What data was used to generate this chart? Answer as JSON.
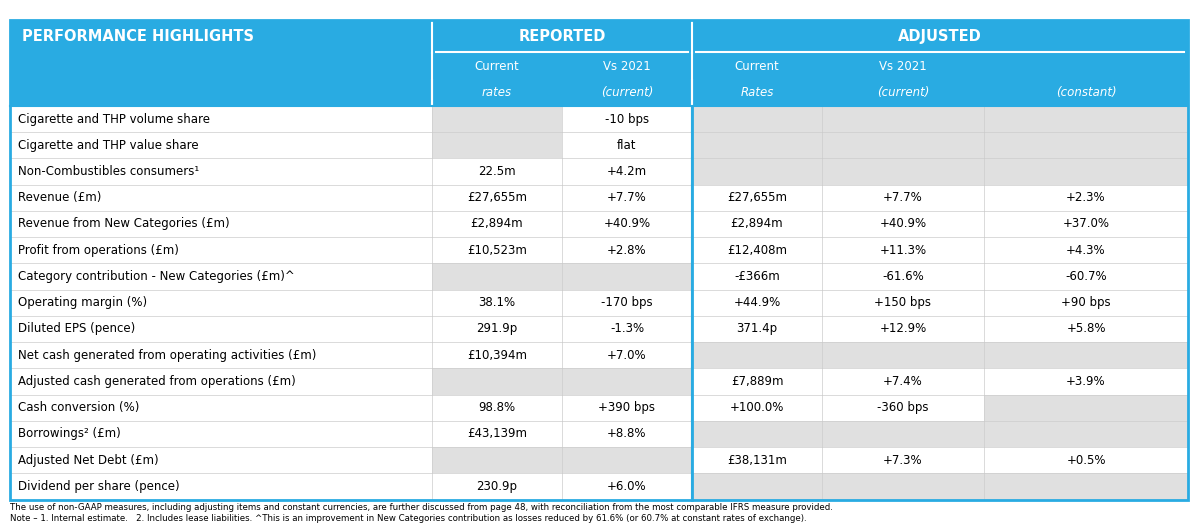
{
  "title": "PERFORMANCE HIGHLIGHTS",
  "header_bg": "#29ABE2",
  "border_color": "#29ABE2",
  "footnote_text": "The use of non-GAAP measures, including adjusting items and constant currencies, are further discussed from page 48, with reconciliation from the most comparable IFRS measure provided.\nNote – 1. Internal estimate.   2. Includes lease liabilities. ^This is an improvement in New Categories contribution as losses reduced by 61.6% (or 60.7% at constant rates of exchange).",
  "rows": [
    [
      "Cigarette and THP volume share",
      "",
      "-10 bps",
      "",
      "",
      ""
    ],
    [
      "Cigarette and THP value share",
      "",
      "flat",
      "",
      "",
      ""
    ],
    [
      "Non-Combustibles consumers¹",
      "22.5m",
      "+4.2m",
      "",
      "",
      ""
    ],
    [
      "Revenue (£m)",
      "£27,655m",
      "+7.7%",
      "£27,655m",
      "+7.7%",
      "+2.3%"
    ],
    [
      "Revenue from New Categories (£m)",
      "£2,894m",
      "+40.9%",
      "£2,894m",
      "+40.9%",
      "+37.0%"
    ],
    [
      "Profit from operations (£m)",
      "£10,523m",
      "+2.8%",
      "£12,408m",
      "+11.3%",
      "+4.3%"
    ],
    [
      "Category contribution - New Categories (£m)^",
      "",
      "",
      "-£366m",
      "-61.6%",
      "-60.7%"
    ],
    [
      "Operating margin (%)",
      "38.1%",
      "-170 bps",
      "+44.9%",
      "+150 bps",
      "+90 bps"
    ],
    [
      "Diluted EPS (pence)",
      "291.9p",
      "-1.3%",
      "371.4p",
      "+12.9%",
      "+5.8%"
    ],
    [
      "Net cash generated from operating activities (£m)",
      "£10,394m",
      "+7.0%",
      "",
      "",
      ""
    ],
    [
      "Adjusted cash generated from operations (£m)",
      "",
      "",
      "£7,889m",
      "+7.4%",
      "+3.9%"
    ],
    [
      "Cash conversion (%)",
      "98.8%",
      "+390 bps",
      "+100.0%",
      "-360 bps",
      ""
    ],
    [
      "Borrowings² (£m)",
      "£43,139m",
      "+8.8%",
      "",
      "",
      ""
    ],
    [
      "Adjusted Net Debt (£m)",
      "",
      "",
      "£38,131m",
      "+7.3%",
      "+0.5%"
    ],
    [
      "Dividend per share (pence)",
      "230.9p",
      "+6.0%",
      "",
      "",
      ""
    ]
  ],
  "gray_cells": {
    "0": [
      1,
      3,
      4,
      5
    ],
    "1": [
      1,
      3,
      4,
      5
    ],
    "2": [
      3,
      4,
      5
    ],
    "6": [
      1,
      2
    ],
    "9": [
      3,
      4,
      5
    ],
    "10": [
      1,
      2
    ],
    "11": [
      5
    ],
    "12": [
      3,
      4,
      5
    ],
    "13": [
      1,
      2
    ],
    "14": [
      3,
      4,
      5
    ]
  }
}
